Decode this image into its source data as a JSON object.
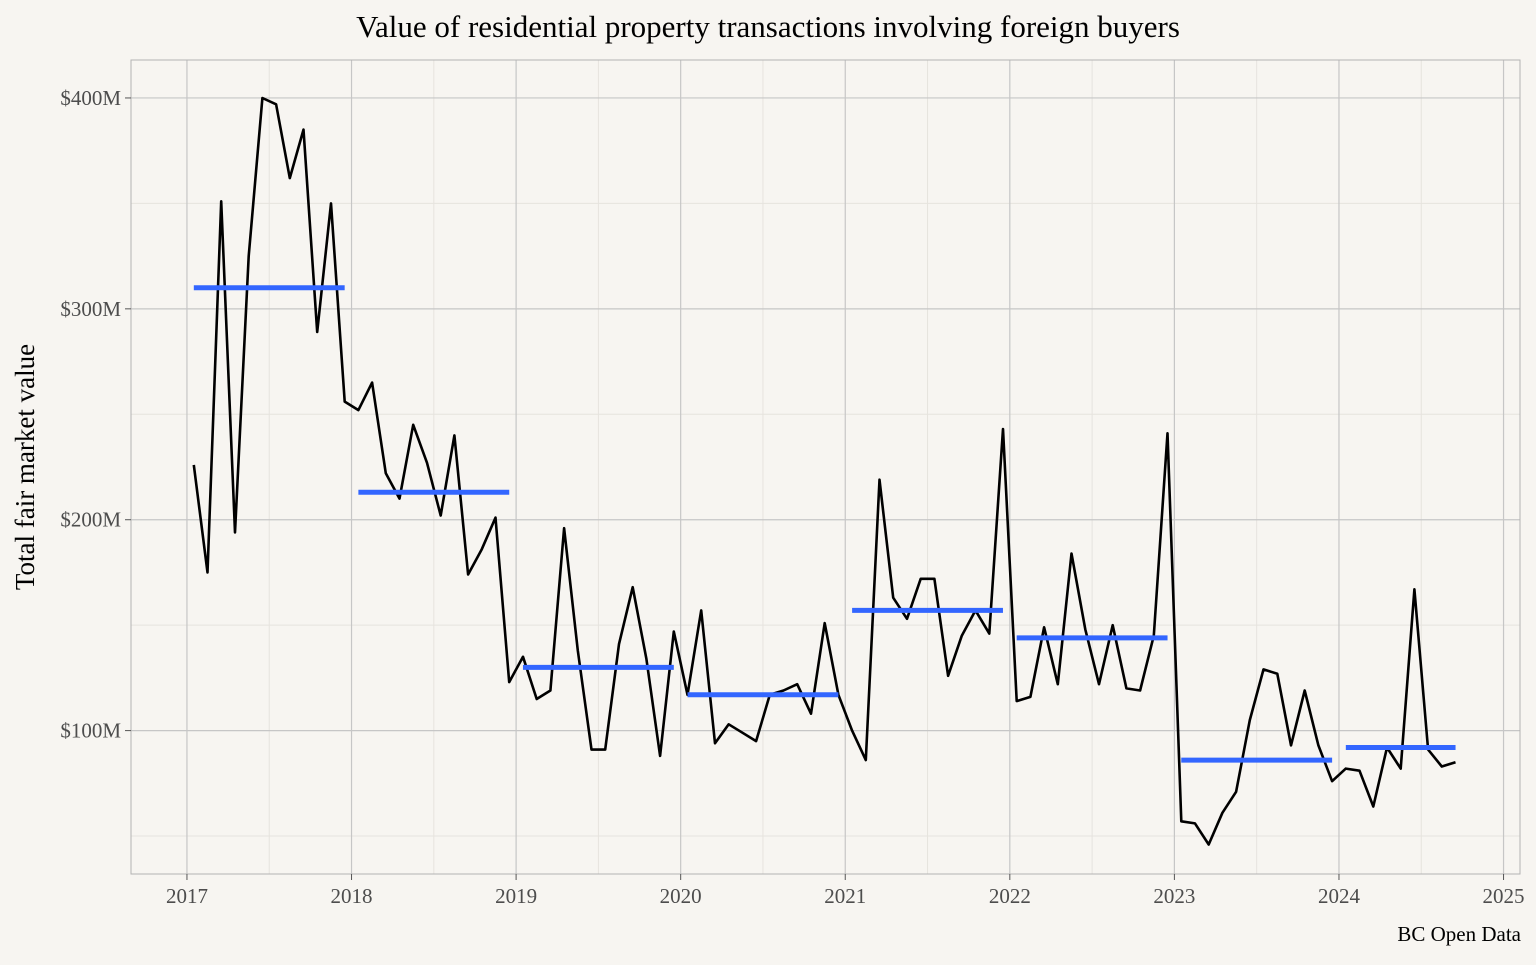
{
  "chart_data": {
    "type": "line",
    "title": "Value of residential property transactions involving foreign buyers",
    "xlabel": "",
    "ylabel": "Total fair market value",
    "caption": "BC Open Data",
    "x_ticks": [
      "2017",
      "2018",
      "2019",
      "2020",
      "2021",
      "2022",
      "2023",
      "2024",
      "2025"
    ],
    "x_tick_values": [
      2017,
      2018,
      2019,
      2020,
      2021,
      2022,
      2023,
      2024,
      2025
    ],
    "y_ticks": [
      "$100M",
      "$200M",
      "$300M",
      "$400M"
    ],
    "y_tick_values": [
      100,
      200,
      300,
      400
    ],
    "xlim": [
      2016.66,
      2025.1
    ],
    "ylim": [
      32,
      418
    ],
    "y_unit": "$M",
    "grid": true,
    "colors": {
      "line": "#000000",
      "annual_mean": "#3366ff",
      "background": "#f7f5f1",
      "panel_border": "#b3b3b3",
      "grid_major": "#c6c6c6",
      "grid_minor": "#e6e3de"
    },
    "series": [
      {
        "type": "line",
        "x": [
          "2017-01",
          "2017-02",
          "2017-03",
          "2017-04",
          "2017-05",
          "2017-06",
          "2017-07",
          "2017-08",
          "2017-09",
          "2017-10",
          "2017-11",
          "2017-12",
          "2018-01",
          "2018-02",
          "2018-03",
          "2018-04",
          "2018-05",
          "2018-06",
          "2018-07",
          "2018-08",
          "2018-09",
          "2018-10",
          "2018-11",
          "2018-12",
          "2019-01",
          "2019-02",
          "2019-03",
          "2019-04",
          "2019-05",
          "2019-06",
          "2019-07",
          "2019-08",
          "2019-09",
          "2019-10",
          "2019-11",
          "2019-12",
          "2020-01",
          "2020-02",
          "2020-03",
          "2020-04",
          "2020-05",
          "2020-06",
          "2020-07",
          "2020-08",
          "2020-09",
          "2020-10",
          "2020-11",
          "2020-12",
          "2021-01",
          "2021-02",
          "2021-03",
          "2021-04",
          "2021-05",
          "2021-06",
          "2021-07",
          "2021-08",
          "2021-09",
          "2021-10",
          "2021-11",
          "2021-12",
          "2022-01",
          "2022-02",
          "2022-03",
          "2022-04",
          "2022-05",
          "2022-06",
          "2022-07",
          "2022-08",
          "2022-09",
          "2022-10",
          "2022-11",
          "2022-12",
          "2023-01",
          "2023-02",
          "2023-03",
          "2023-04",
          "2023-05",
          "2023-06",
          "2023-07",
          "2023-08",
          "2023-09",
          "2023-10",
          "2023-11",
          "2023-12",
          "2024-01",
          "2024-02",
          "2024-03",
          "2024-04",
          "2024-05",
          "2024-06",
          "2024-07",
          "2024-08",
          "2024-09"
        ],
        "values": [
          226,
          175,
          351,
          194,
          325,
          400,
          397,
          362,
          385,
          289,
          350,
          256,
          252,
          265,
          222,
          210,
          245,
          227,
          202,
          240,
          174,
          186,
          201,
          123,
          135,
          115,
          119,
          196,
          138,
          91,
          91,
          141,
          168,
          134,
          88,
          147,
          117,
          157,
          94,
          103,
          99,
          95,
          117,
          119,
          122,
          108,
          151,
          117,
          100,
          86,
          219,
          163,
          153,
          172,
          172,
          126,
          145,
          157,
          146,
          243,
          114,
          116,
          149,
          122,
          184,
          148,
          122,
          150,
          120,
          119,
          145,
          241,
          57,
          56,
          46,
          61,
          71,
          105,
          129,
          127,
          93,
          119,
          93,
          76,
          82,
          81,
          64,
          92,
          82,
          167,
          91,
          83,
          85
        ]
      },
      {
        "type": "annual_mean",
        "segments": [
          {
            "year": 2017,
            "value": 310
          },
          {
            "year": 2018,
            "value": 213
          },
          {
            "year": 2019,
            "value": 130
          },
          {
            "year": 2020,
            "value": 117
          },
          {
            "year": 2021,
            "value": 157
          },
          {
            "year": 2022,
            "value": 144
          },
          {
            "year": 2023,
            "value": 86
          },
          {
            "year": 2024,
            "value": 92
          }
        ]
      }
    ]
  }
}
